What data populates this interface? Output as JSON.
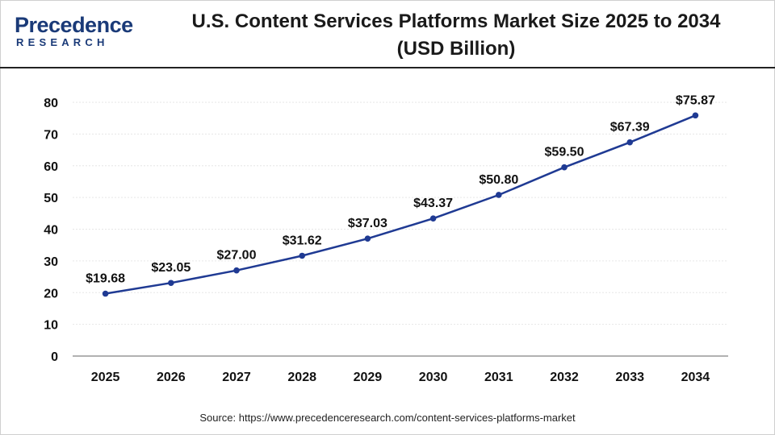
{
  "logo": {
    "line1": "Precedence",
    "line2": "RESEARCH"
  },
  "chart_data": {
    "type": "line",
    "title_line1": "U.S. Content Services Platforms Market Size 2025 to 2034",
    "title_line2": "(USD Billion)",
    "categories": [
      "2025",
      "2026",
      "2027",
      "2028",
      "2029",
      "2030",
      "2031",
      "2032",
      "2033",
      "2034"
    ],
    "values": [
      19.68,
      23.05,
      27.0,
      31.62,
      37.03,
      43.37,
      50.8,
      59.5,
      67.39,
      75.87
    ],
    "data_labels": [
      "$19.68",
      "$23.05",
      "$27.00",
      "$31.62",
      "$37.03",
      "$43.37",
      "$50.80",
      "$59.50",
      "$67.39",
      "$75.87"
    ],
    "yticks": [
      0,
      10,
      20,
      30,
      40,
      50,
      60,
      70,
      80
    ],
    "ylim": [
      0,
      80
    ],
    "xlabel": "",
    "ylabel": "",
    "grid": true,
    "colors": {
      "line": "#1f3a93",
      "marker": "#1f3a93",
      "grid": "#e6e6e6",
      "axis": "#999999"
    }
  },
  "source": "Source: https://www.precedenceresearch.com/content-services-platforms-market"
}
